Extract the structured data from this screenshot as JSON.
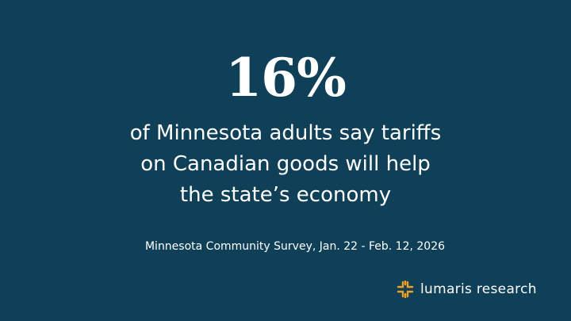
{
  "stat": "16%",
  "description": [
    "of Minnesota adults say tariffs",
    "on Canadian goods will help",
    "the state’s economy"
  ],
  "source": "Minnesota Community Survey, Jan. 22 - Feb. 12, 2026",
  "brand": "lumaris research"
}
